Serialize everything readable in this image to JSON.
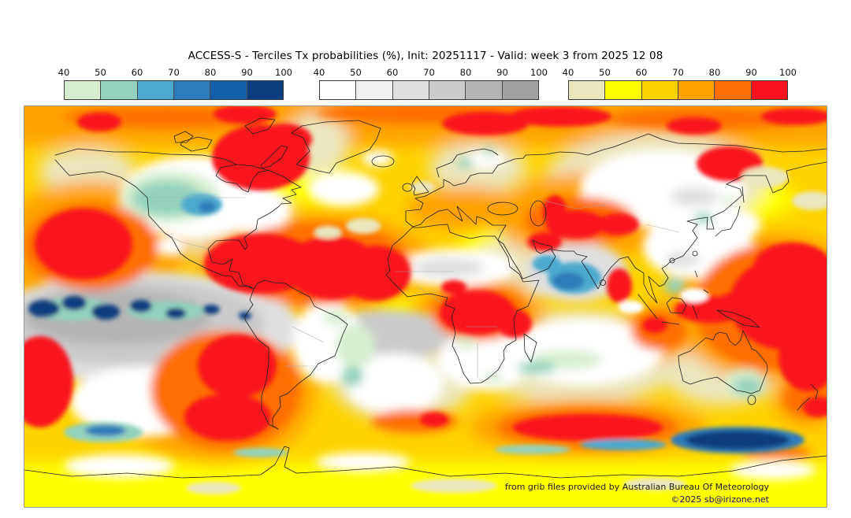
{
  "header": {
    "title": "ACCESS-S - Terciles Tx probabilities (%), Init: 20251117 - Valid: week 3 from 2025 12 08"
  },
  "colorbars": [
    {
      "name": "below-normal-tercile-blues",
      "ticks": [
        "40",
        "50",
        "60",
        "70",
        "80",
        "90",
        "100"
      ],
      "colors": [
        "#D6EECF",
        "#92D1BD",
        "#4CA9CF",
        "#2D7CBA",
        "#135FA9",
        "#0C3D7F"
      ]
    },
    {
      "name": "near-normal-tercile-grays",
      "ticks": [
        "40",
        "50",
        "60",
        "70",
        "80",
        "90",
        "100"
      ],
      "colors": [
        "#FFFFFF",
        "#F0F0F0",
        "#DFDFDF",
        "#CBCBCB",
        "#B4B4B4",
        "#A1A1A1"
      ]
    },
    {
      "name": "above-normal-tercile-warm",
      "ticks": [
        "40",
        "50",
        "60",
        "70",
        "80",
        "90",
        "100"
      ],
      "colors": [
        "#EAE6BE",
        "#FFFF00",
        "#FFD300",
        "#FFA200",
        "#FF6E00",
        "#F8121E"
      ]
    }
  ],
  "map": {
    "credit_line": "from grib files provided by Australian Bureau Of Meteorology",
    "copyright_line": "©2025 sb@irizone.net"
  },
  "chart_data": {
    "type": "heatmap",
    "title": "ACCESS-S - Terciles Tx probabilities (%), Init: 20251117 - Valid: week 3 from 2025 12 08",
    "legend_bins": [
      40,
      50,
      60,
      70,
      80,
      90,
      100
    ],
    "terciles": [
      "below normal (blue scale)",
      "near normal (gray scale)",
      "above normal (yellow-red scale)"
    ],
    "projection": "equirectangular world map, lon -180..180, lat 90..-90",
    "highlights": [
      "above-normal 90-100% (red): Hudson Bay/Baffin, tropical Atlantic & Caribbean, NE Pacific off Mexico, SE Pacific off Chile, central Asia, Siberian Arctic coast, Congo basin, south Indian Ocean band, west tropical Pacific",
      "below-normal (blues): central North America, NW India/Pakistan, equatorial east Pacific blobs, Southern Ocean south of Australia",
      "near-normal (grays): equatorial east Pacific band, Sahara, central Siberia, China, southern Africa, Indian Ocean core"
    ]
  }
}
